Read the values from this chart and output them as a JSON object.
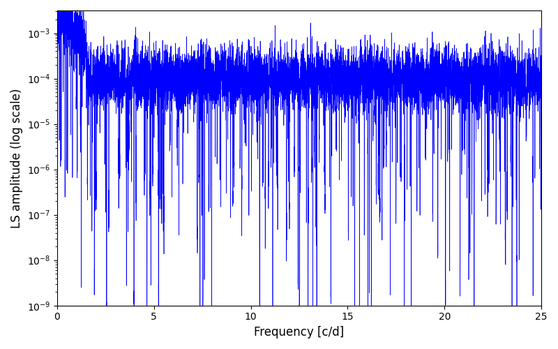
{
  "xlabel": "Frequency [c/d]",
  "ylabel": "LS amplitude (log scale)",
  "xlim": [
    0,
    25
  ],
  "ylim_log": [
    -9,
    -2.5
  ],
  "line_color": "#0000ff",
  "line_width": 0.5,
  "figsize": [
    8.0,
    5.0
  ],
  "dpi": 100,
  "seed": 12345,
  "n_points": 8000,
  "freq_max": 25.0,
  "background_color": "#ffffff"
}
